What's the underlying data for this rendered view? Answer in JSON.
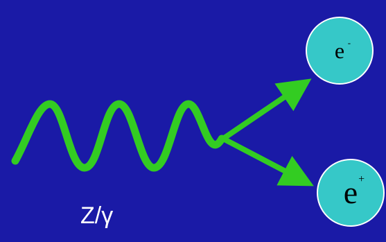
{
  "boson": {
    "label": "Z/γ"
  },
  "electron": {
    "symbol": "e",
    "charge": "-"
  },
  "positron": {
    "symbol": "e",
    "charge": "+"
  },
  "colors": {
    "background": "#1a1aa6",
    "propagator": "#33cc22",
    "particle_fill": "#36c8c8",
    "particle_border": "#ffffff",
    "label_text": "#ffffff"
  }
}
